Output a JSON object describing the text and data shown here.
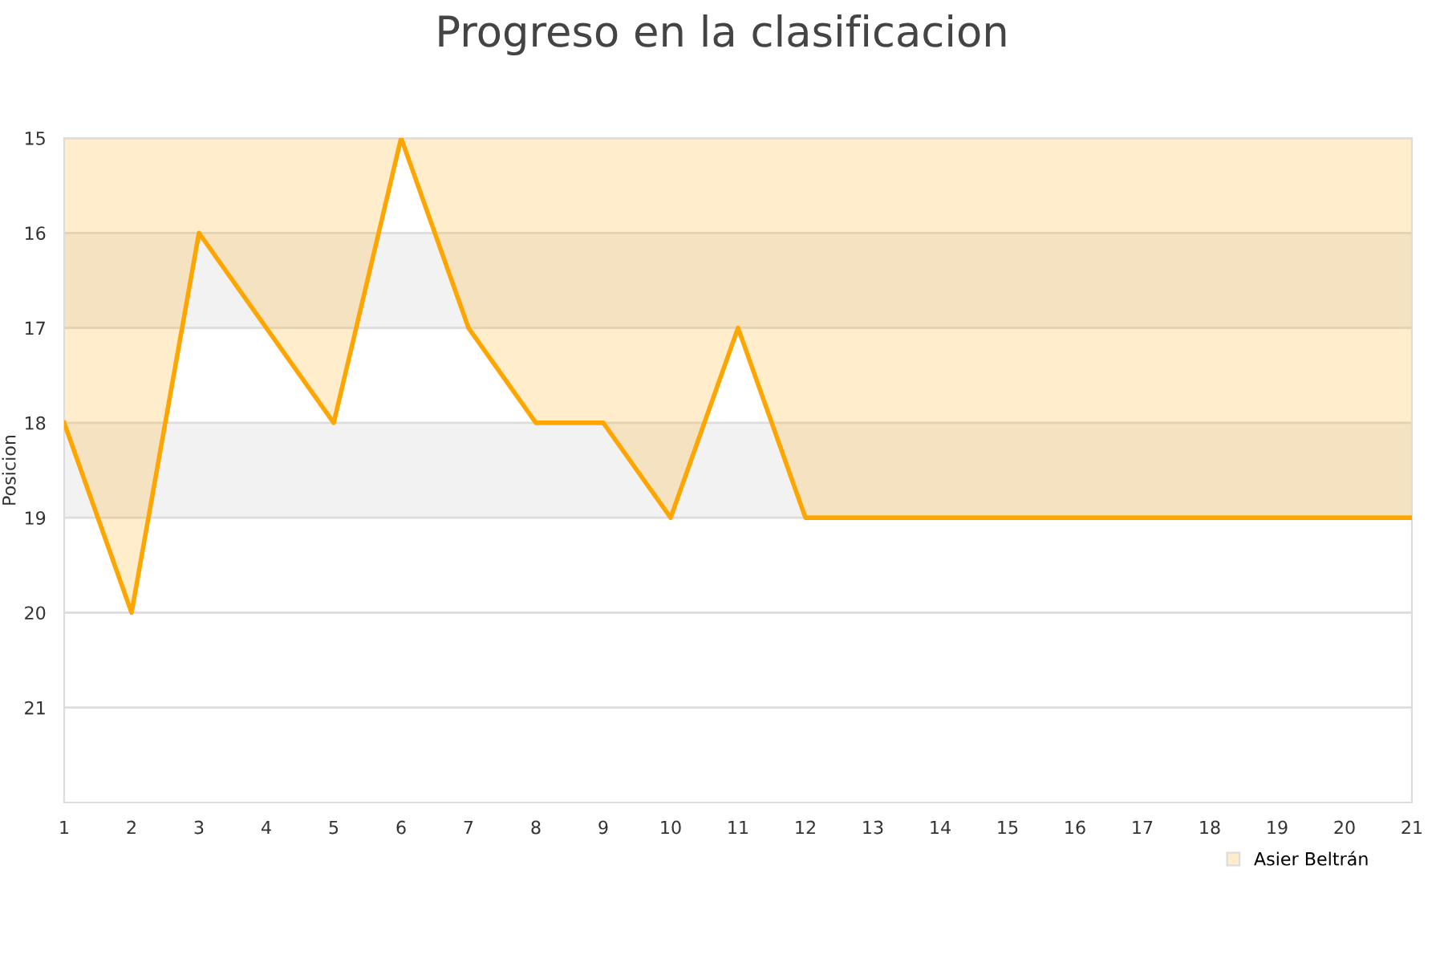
{
  "chart_data": {
    "type": "area",
    "title": "Progreso en la clasificacion",
    "ylabel": "Posicion",
    "x": [
      1,
      2,
      3,
      4,
      5,
      6,
      7,
      8,
      9,
      10,
      11,
      12,
      13,
      14,
      15,
      16,
      17,
      18,
      19,
      20,
      21
    ],
    "series": [
      {
        "name": "Asier Beltrán",
        "color": "#ffa500",
        "values": [
          18,
          20,
          16,
          17,
          18,
          15,
          17,
          18,
          18,
          19,
          17,
          19,
          19,
          19,
          19,
          19,
          19,
          19,
          19,
          19,
          19
        ]
      }
    ],
    "xlim": [
      1,
      21
    ],
    "xticks": [
      1,
      2,
      3,
      4,
      5,
      6,
      7,
      8,
      9,
      10,
      11,
      12,
      13,
      14,
      15,
      16,
      17,
      18,
      19,
      20,
      21
    ],
    "ylim": [
      22,
      15
    ],
    "yticks": [
      15,
      16,
      17,
      18,
      19,
      20,
      21
    ],
    "bands": [
      {
        "axis": "y",
        "from": 16,
        "to": 17,
        "label": null,
        "color": "#f2f2f2"
      },
      {
        "axis": "y",
        "from": 18,
        "to": 19,
        "label": null,
        "color": "#f2f2f2"
      }
    ],
    "grid": "y",
    "legend": "bottom right",
    "marker": "none",
    "line_style": "solid"
  }
}
